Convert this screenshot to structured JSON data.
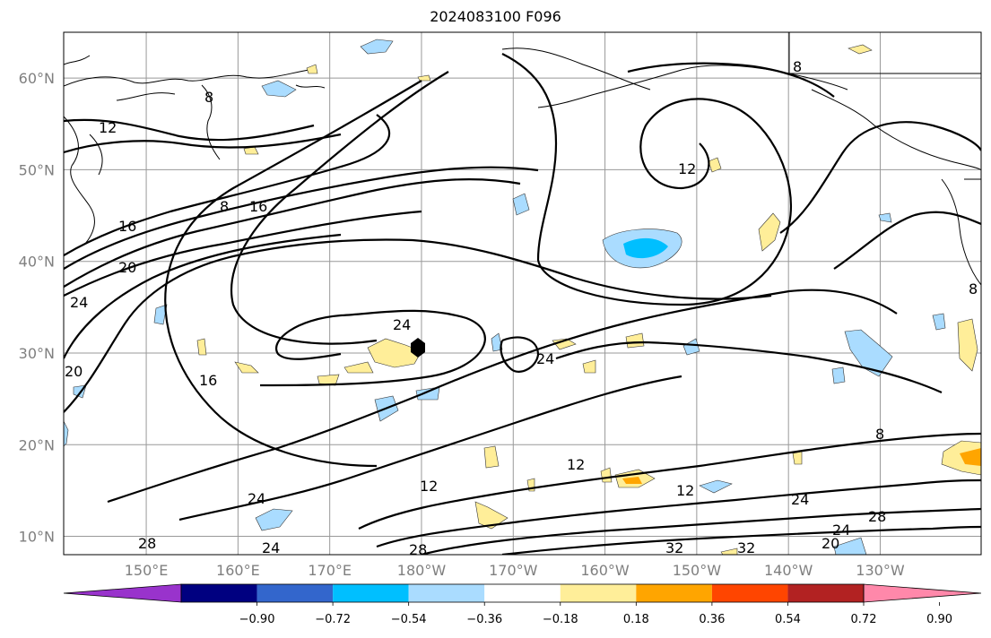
{
  "title": "2024083100 F096",
  "map": {
    "projection": "equirectangular",
    "lon_range": [
      141,
      241
    ],
    "lat_range": [
      8,
      65
    ],
    "gridlines": true,
    "lon_ticks": [
      {
        "lon": 150,
        "label": "150°E"
      },
      {
        "lon": 160,
        "label": "160°E"
      },
      {
        "lon": 170,
        "label": "170°E"
      },
      {
        "lon": 180,
        "label": "180°W"
      },
      {
        "lon": 190,
        "label": "170°W"
      },
      {
        "lon": 200,
        "label": "160°W"
      },
      {
        "lon": 210,
        "label": "150°W"
      },
      {
        "lon": 220,
        "label": "140°W"
      },
      {
        "lon": 230,
        "label": "130°W"
      }
    ],
    "lat_ticks": [
      {
        "lat": 10,
        "label": "10°N"
      },
      {
        "lat": 20,
        "label": "20°N"
      },
      {
        "lat": 30,
        "label": "30°N"
      },
      {
        "lat": 40,
        "label": "40°N"
      },
      {
        "lat": 50,
        "label": "50°N"
      },
      {
        "lat": 60,
        "label": "60°N"
      }
    ],
    "contour_labels": [
      "8",
      "12",
      "16",
      "20",
      "24",
      "28",
      "32"
    ],
    "marker": {
      "name": "storm-center",
      "lon": 179,
      "lat": 31
    }
  },
  "colorbar": {
    "colors": [
      "#9933cc",
      "#000080",
      "#3366cc",
      "#00bfff",
      "#aadcff",
      "#ffffff",
      "#ffee99",
      "#ffa500",
      "#ff4500",
      "#b22222",
      "#ff88aa"
    ],
    "ticks": [
      "−0.90",
      "−0.72",
      "−0.54",
      "−0.36",
      "−0.18",
      "0.18",
      "0.36",
      "0.54",
      "0.72",
      "0.90"
    ],
    "extend": "both"
  },
  "colors": {
    "land_outline": "#000000",
    "contour": "#000000",
    "grid": "#999999",
    "negative_fill": "#aadcff",
    "negative_core": "#00bfff",
    "positive_fill": "#ffee99",
    "positive_core": "#ffa500"
  }
}
